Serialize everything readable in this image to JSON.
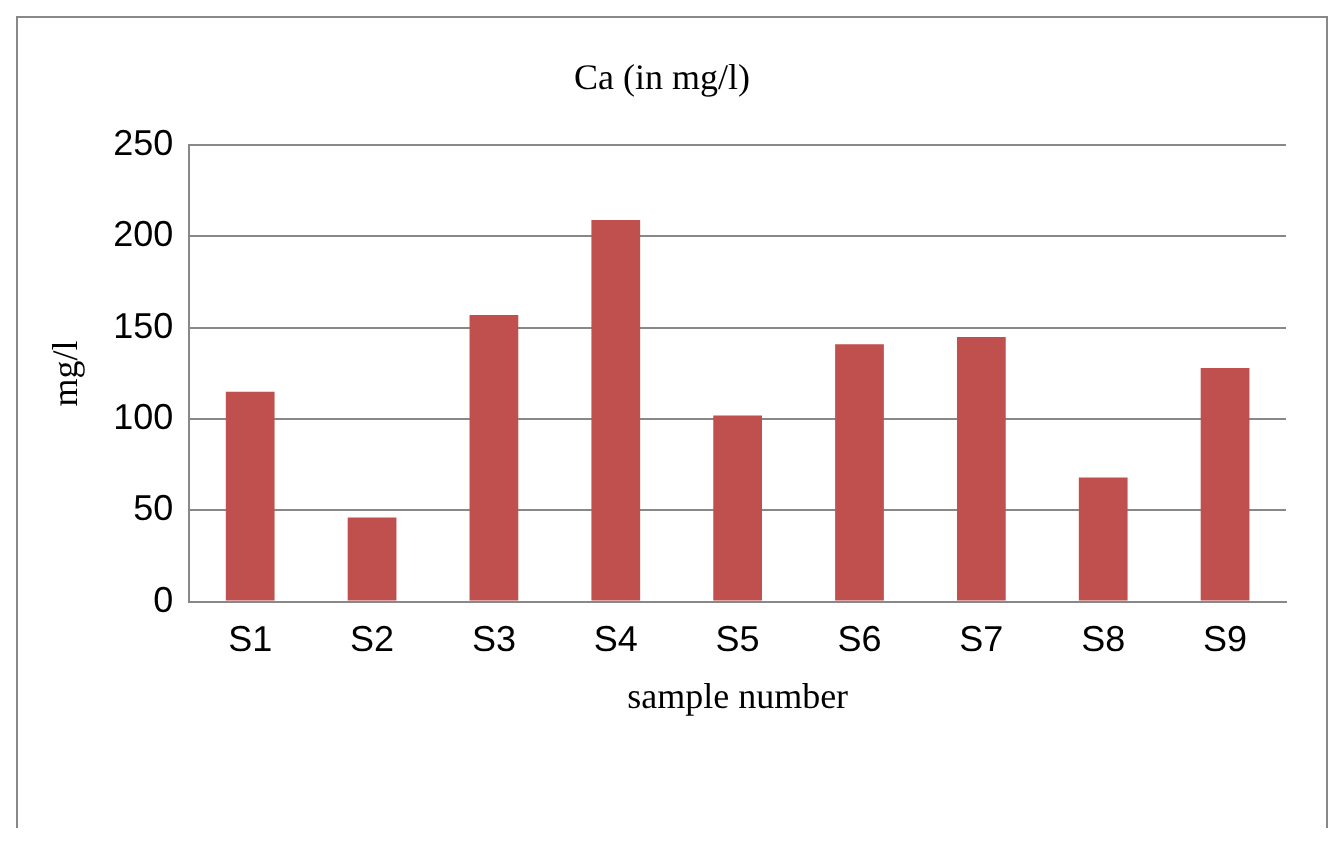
{
  "chart_data": {
    "type": "bar",
    "title": "Ca (in mg/l)",
    "xlabel": "sample number",
    "ylabel": "mg/l",
    "categories": [
      "S1",
      "S2",
      "S3",
      "S4",
      "S5",
      "S6",
      "S7",
      "S8",
      "S9"
    ],
    "values": [
      115,
      46,
      157,
      209,
      102,
      141,
      145,
      68,
      128
    ],
    "color": "#c0504d",
    "ylim": [
      0,
      250
    ],
    "yticks": [
      0,
      50,
      100,
      150,
      200,
      250
    ],
    "grid": "y",
    "legend": false
  }
}
